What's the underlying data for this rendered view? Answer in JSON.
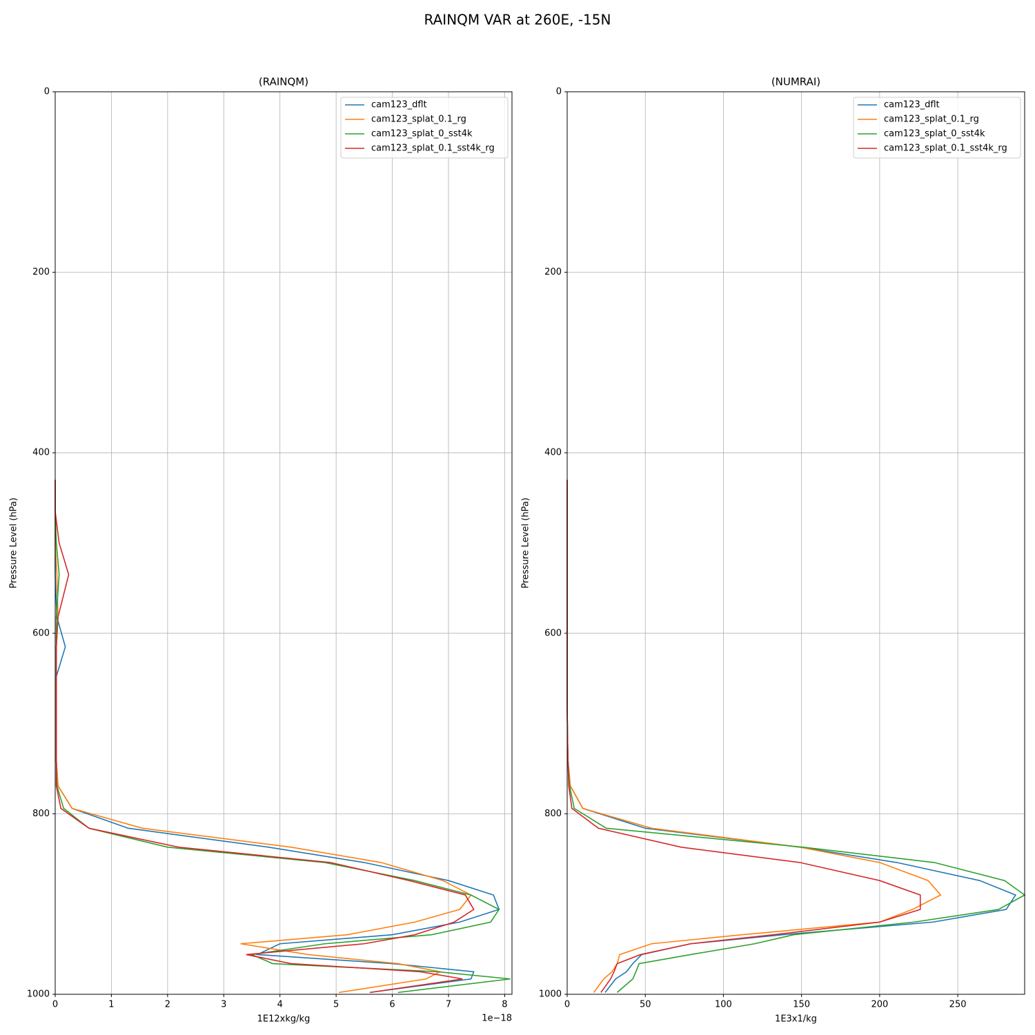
{
  "title": "RAINQM VAR at 260E, -15N",
  "chart_data": [
    {
      "type": "line",
      "title": "(RAINQM)",
      "x_label": "1E12xkg/kg",
      "y_label": "Pressure Level (hPa)",
      "x_offset_label": "1e−18",
      "xlim": [
        0,
        8.13
      ],
      "xticks": [
        0,
        1,
        2,
        3,
        4,
        5,
        6,
        7,
        8
      ],
      "ylim": [
        1000,
        0
      ],
      "yticks": [
        0,
        200,
        400,
        600,
        800,
        1000
      ],
      "grid": true,
      "legend": "upper right",
      "y": [
        998,
        983,
        975,
        966,
        956,
        944,
        934,
        920,
        906,
        890,
        874,
        854,
        837,
        816,
        794,
        769,
        741,
        711,
        680,
        648,
        615,
        582,
        535,
        500,
        465,
        430
      ],
      "series": [
        {
          "name": "cam123_dflt",
          "color": "#1f77b4",
          "values": [
            5.6,
            7.4,
            7.45,
            6.0,
            3.6,
            4.0,
            6.0,
            7.2,
            7.9,
            7.8,
            7.0,
            5.5,
            3.8,
            1.3,
            0.3,
            0.05,
            0.02,
            0.02,
            0.02,
            0.02,
            0.18,
            0.03,
            0,
            0,
            0,
            0
          ]
        },
        {
          "name": "cam123_splat_0.1_rg",
          "color": "#ff7f0e",
          "values": [
            5.05,
            6.6,
            6.85,
            6.1,
            4.5,
            3.3,
            5.2,
            6.4,
            7.2,
            7.4,
            6.9,
            5.8,
            4.2,
            1.55,
            0.3,
            0.05,
            0.02,
            0.02,
            0.02,
            0.02,
            0.02,
            0.05,
            0.03,
            0,
            0,
            0
          ]
        },
        {
          "name": "cam123_splat_0_sst4k",
          "color": "#2ca02c",
          "values": [
            6.1,
            8.1,
            6.8,
            3.87,
            3.5,
            4.8,
            6.7,
            7.75,
            7.9,
            7.4,
            6.4,
            4.8,
            2.0,
            0.6,
            0.15,
            0.03,
            0.02,
            0.02,
            0.02,
            0.02,
            0.02,
            0.02,
            0.07,
            0.02,
            0,
            0
          ]
        },
        {
          "name": "cam123_splat_0.1_sst4k_rg",
          "color": "#d62728",
          "values": [
            5.6,
            7.25,
            6.5,
            4.2,
            3.4,
            5.5,
            6.4,
            7.1,
            7.45,
            7.3,
            6.3,
            4.9,
            2.2,
            0.6,
            0.1,
            0.02,
            0.02,
            0.02,
            0.02,
            0.02,
            0.02,
            0.05,
            0.24,
            0.07,
            0,
            0
          ]
        }
      ]
    },
    {
      "type": "line",
      "title": "(NUMRAI)",
      "x_label": "1E3x1/kg",
      "y_label": "Pressure Level (hPa)",
      "xlim": [
        0,
        292.8
      ],
      "xticks": [
        0,
        50,
        100,
        150,
        200,
        250
      ],
      "ylim": [
        1000,
        0
      ],
      "yticks": [
        0,
        200,
        400,
        600,
        800,
        1000
      ],
      "grid": true,
      "legend": "upper right",
      "y": [
        998,
        983,
        975,
        966,
        956,
        944,
        934,
        920,
        906,
        890,
        874,
        854,
        837,
        816,
        794,
        769,
        741,
        711,
        680,
        648,
        615,
        582,
        535,
        500,
        465,
        430
      ],
      "series": [
        {
          "name": "cam123_dflt",
          "color": "#1f77b4",
          "values": [
            24.3,
            31,
            38,
            42,
            47.7,
            79,
            138,
            234,
            281,
            287,
            264,
            211,
            149,
            50,
            10,
            2,
            0.5,
            0.2,
            0,
            0,
            0,
            0,
            0,
            0,
            0,
            0
          ]
        },
        {
          "name": "cam123_splat_0.1_rg",
          "color": "#ff7f0e",
          "values": [
            17,
            23.4,
            28.7,
            32,
            33.6,
            54,
            112,
            200,
            221,
            239,
            231,
            200,
            149,
            54,
            10,
            2,
            0.5,
            0.2,
            0,
            0,
            0,
            0,
            0,
            0,
            0,
            0
          ]
        },
        {
          "name": "cam123_splat_0_sst4k",
          "color": "#2ca02c",
          "values": [
            32,
            42,
            44,
            46,
            79,
            120,
            145,
            222,
            276,
            292.8,
            280,
            235,
            151,
            25,
            4.5,
            1.5,
            0.5,
            0.2,
            0,
            0,
            0,
            0,
            0,
            0,
            0,
            0
          ]
        },
        {
          "name": "cam123_splat_0.1_sst4k_rg",
          "color": "#d62728",
          "values": [
            21.6,
            27.8,
            30,
            32,
            47,
            79,
            132,
            200,
            226,
            226,
            200,
            149,
            73,
            20,
            3,
            1,
            0.5,
            0.2,
            0,
            0,
            0,
            0,
            0,
            0,
            0,
            0
          ]
        }
      ]
    }
  ]
}
